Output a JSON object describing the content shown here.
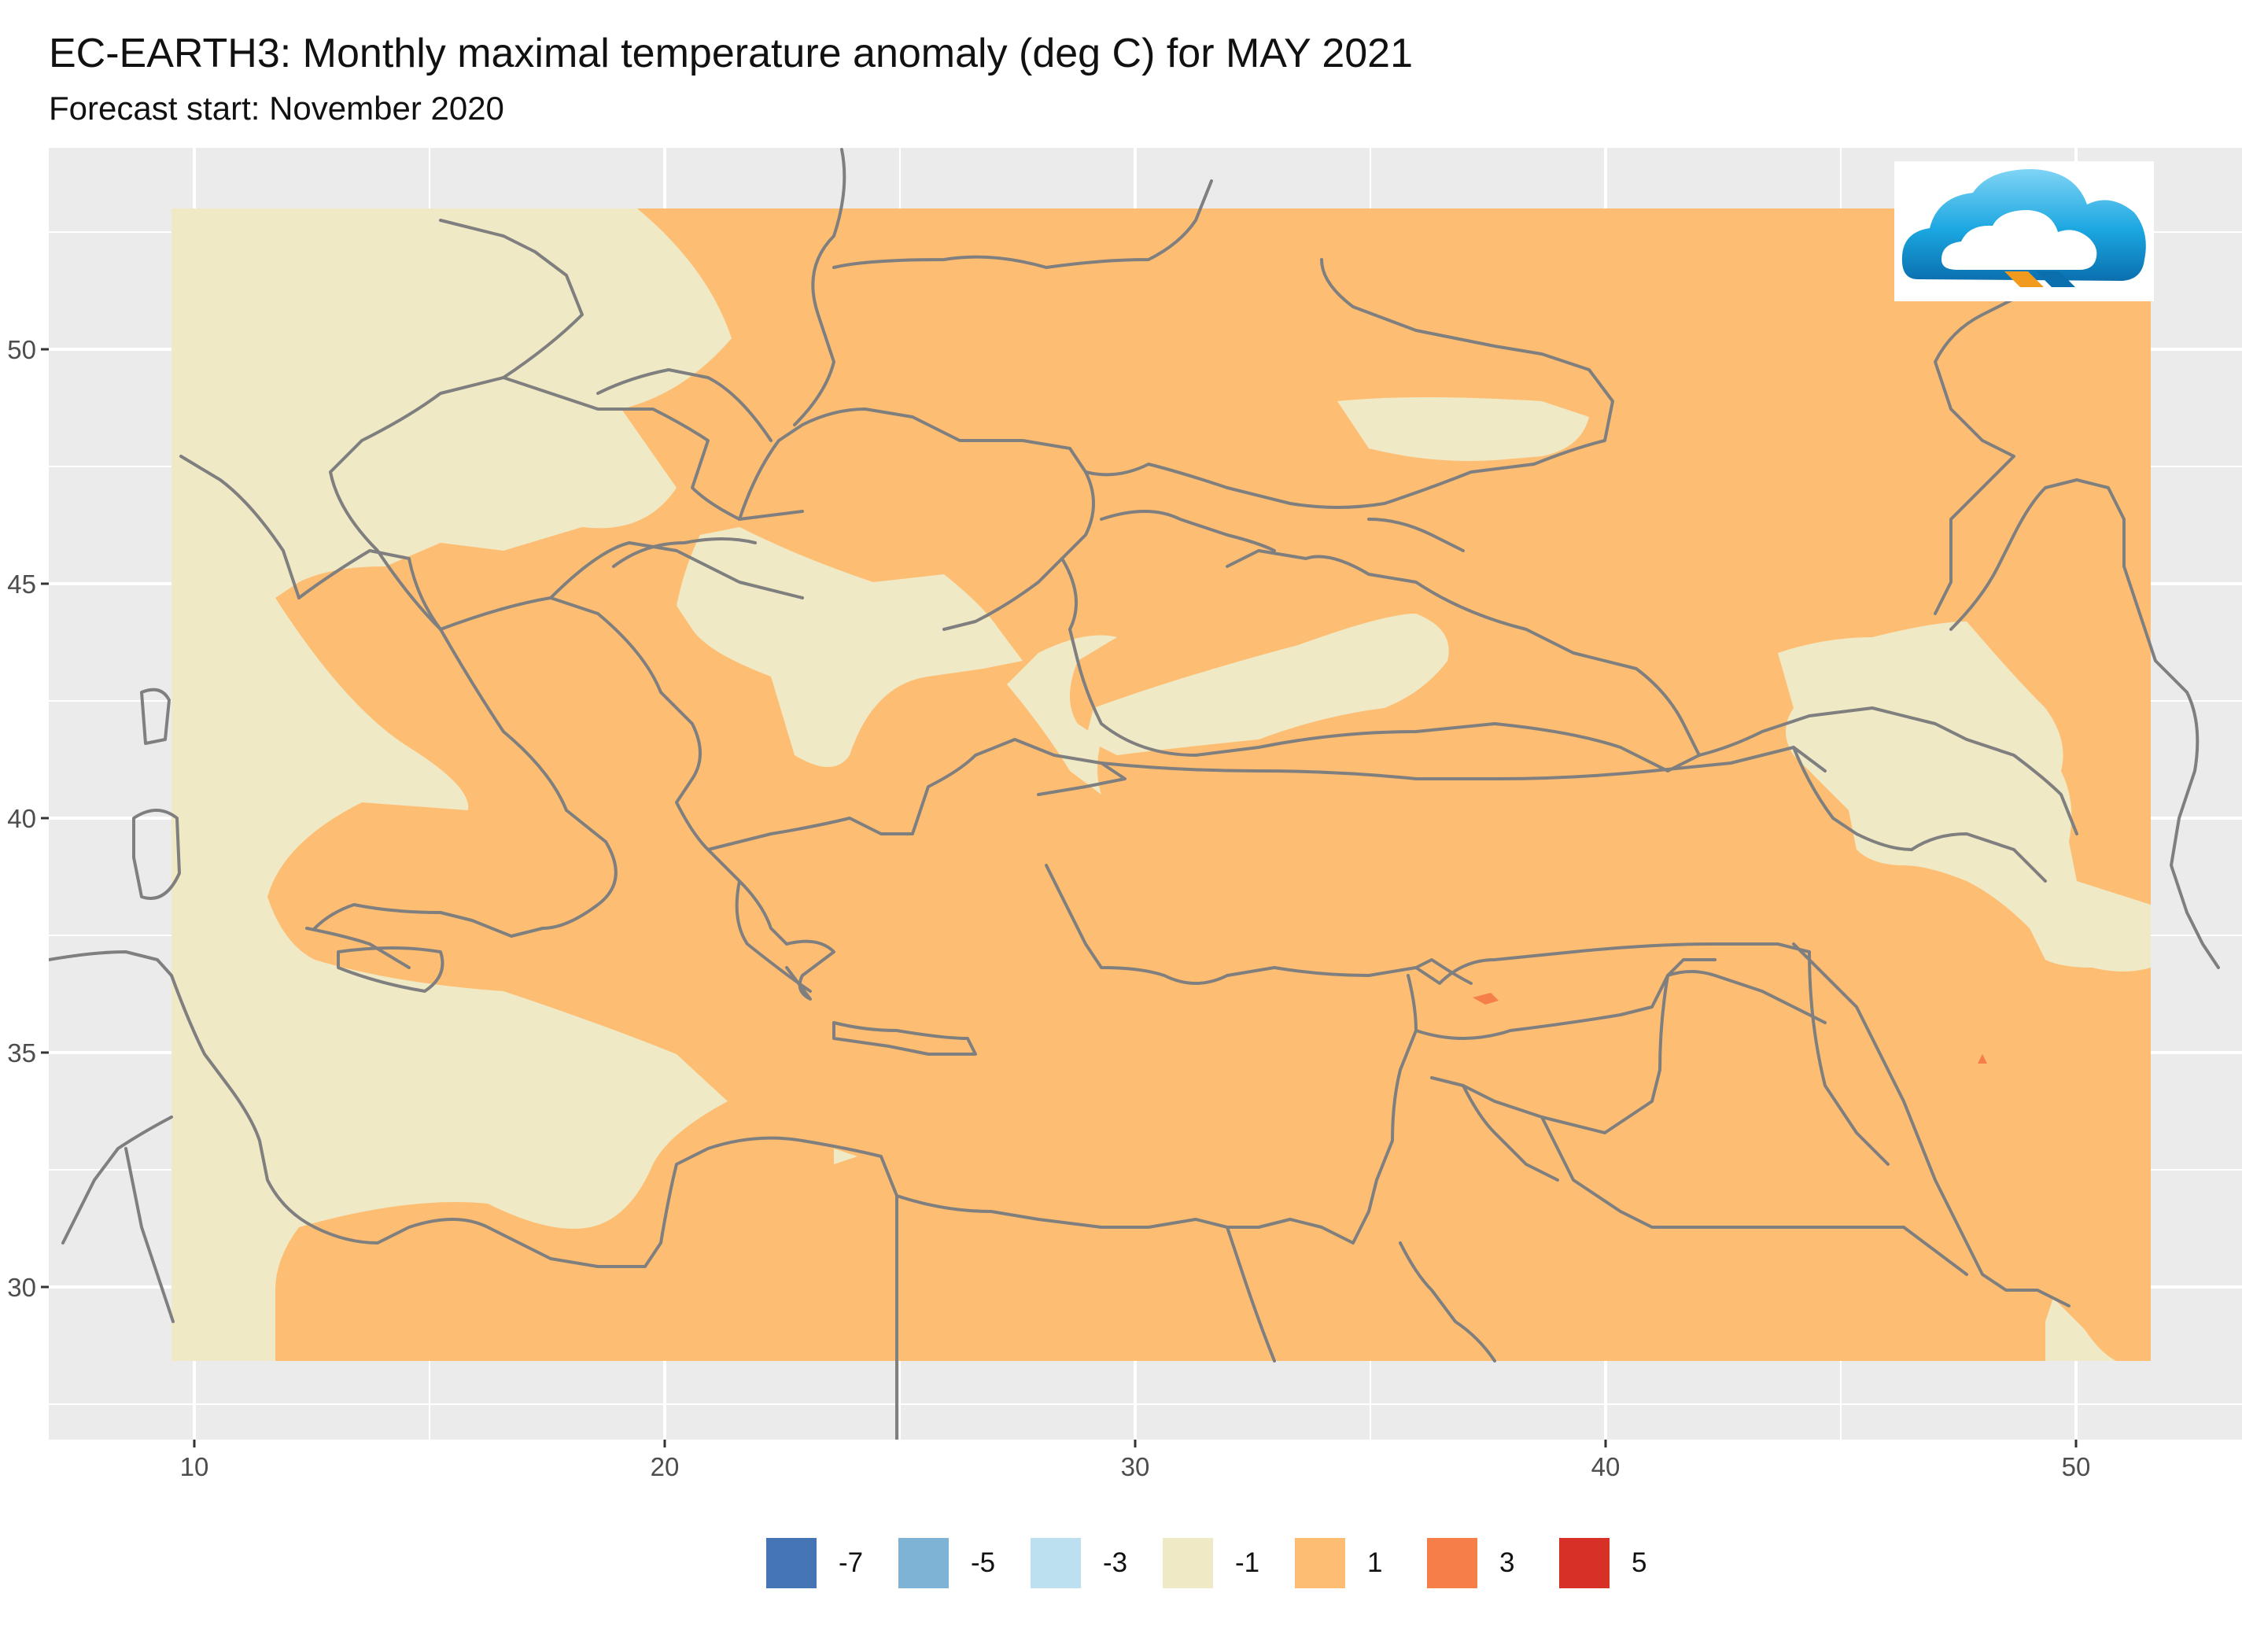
{
  "title": "EC-EARTH3: Monthly maximal temperature anomaly (deg C) for MAY 2021",
  "subtitle": "Forecast start: November 2020",
  "map": {
    "x_ticks": [
      "10",
      "20",
      "30",
      "40",
      "50"
    ],
    "y_ticks": [
      "30",
      "35",
      "40",
      "45",
      "50"
    ],
    "x_range": [
      7,
      53
    ],
    "y_range": [
      27,
      54
    ],
    "panel_color": "#EBEBEB",
    "grid_color": "#FFFFFF",
    "border_color": "#7F7F7F",
    "base_anomaly_color": "#FDBE73",
    "near_zero_color": "#EFE9C5",
    "warm_color": "#F57E49"
  },
  "legend": {
    "items": [
      {
        "label": "-7",
        "color": "#4575B4"
      },
      {
        "label": "-5",
        "color": "#7FB3D5"
      },
      {
        "label": "-3",
        "color": "#BCE0F0"
      },
      {
        "label": "-1",
        "color": "#EFE9C5"
      },
      {
        "label": "1",
        "color": "#FDBE73"
      },
      {
        "label": "3",
        "color": "#F57E49"
      },
      {
        "label": "5",
        "color": "#D73027"
      }
    ]
  },
  "logo": {
    "icon": "cloud-logo-icon"
  }
}
